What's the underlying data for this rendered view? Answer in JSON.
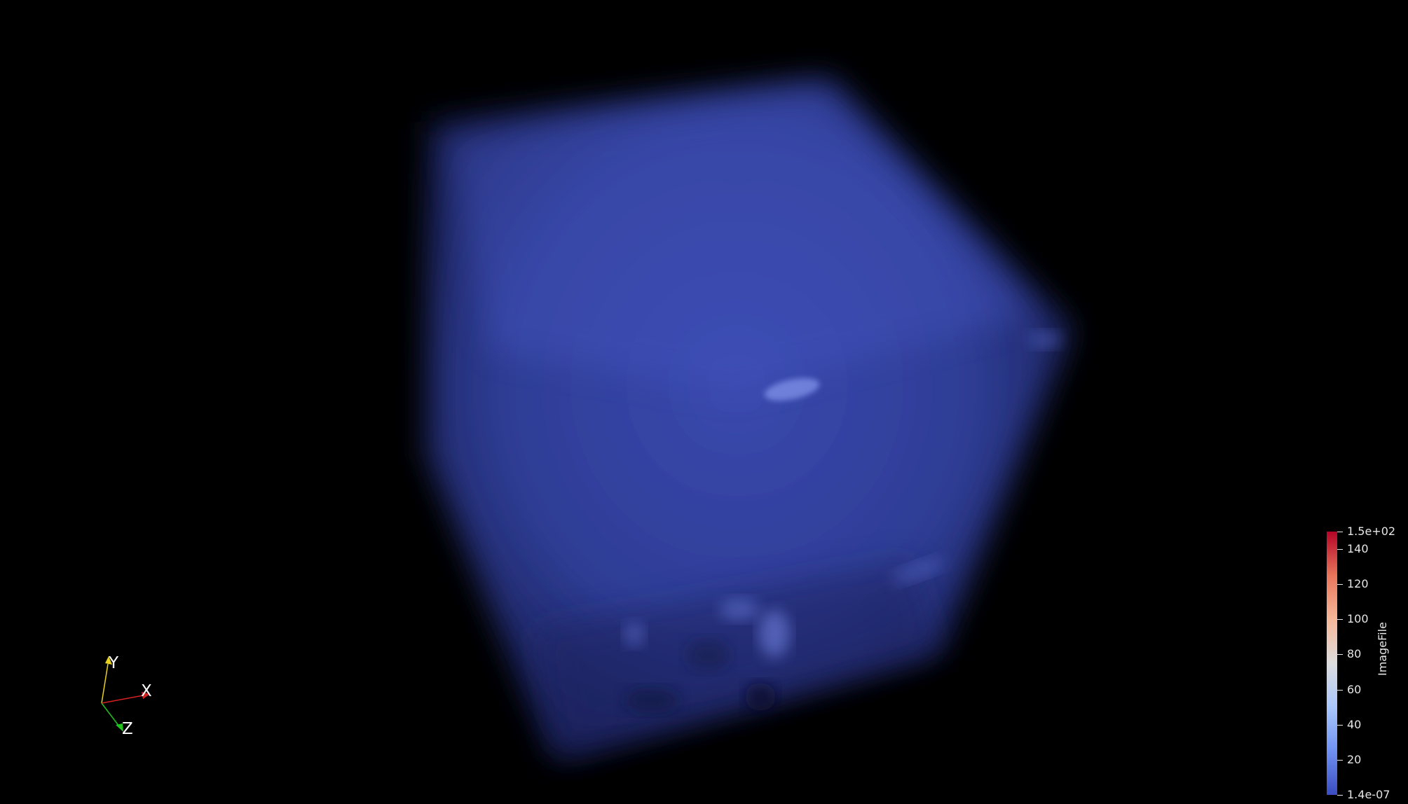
{
  "scene": {
    "background": "#000000",
    "volume_color": "#3f4fc0",
    "volume_highlight": "#6a7ee0"
  },
  "orientation_axes": {
    "x_label": "X",
    "y_label": "Y",
    "z_label": "Z",
    "x_color": "#d62020",
    "y_color": "#e6d21e",
    "z_color": "#22c21e"
  },
  "color_legend": {
    "title": "ImageFile",
    "colormap": [
      "#3b4cc0",
      "#6f91f2",
      "#aac7fd",
      "#dddddd",
      "#f6b89a",
      "#e7755b",
      "#b40426"
    ],
    "ticks": [
      {
        "label": "1.5e+02",
        "value": 150
      },
      {
        "label": "140",
        "value": 140
      },
      {
        "label": "120",
        "value": 120
      },
      {
        "label": "100",
        "value": 100
      },
      {
        "label": "80",
        "value": 80
      },
      {
        "label": "60",
        "value": 60
      },
      {
        "label": "40",
        "value": 40
      },
      {
        "label": "20",
        "value": 20
      },
      {
        "label": "1.4e-07",
        "value": 0
      }
    ],
    "range": [
      0,
      150
    ]
  }
}
